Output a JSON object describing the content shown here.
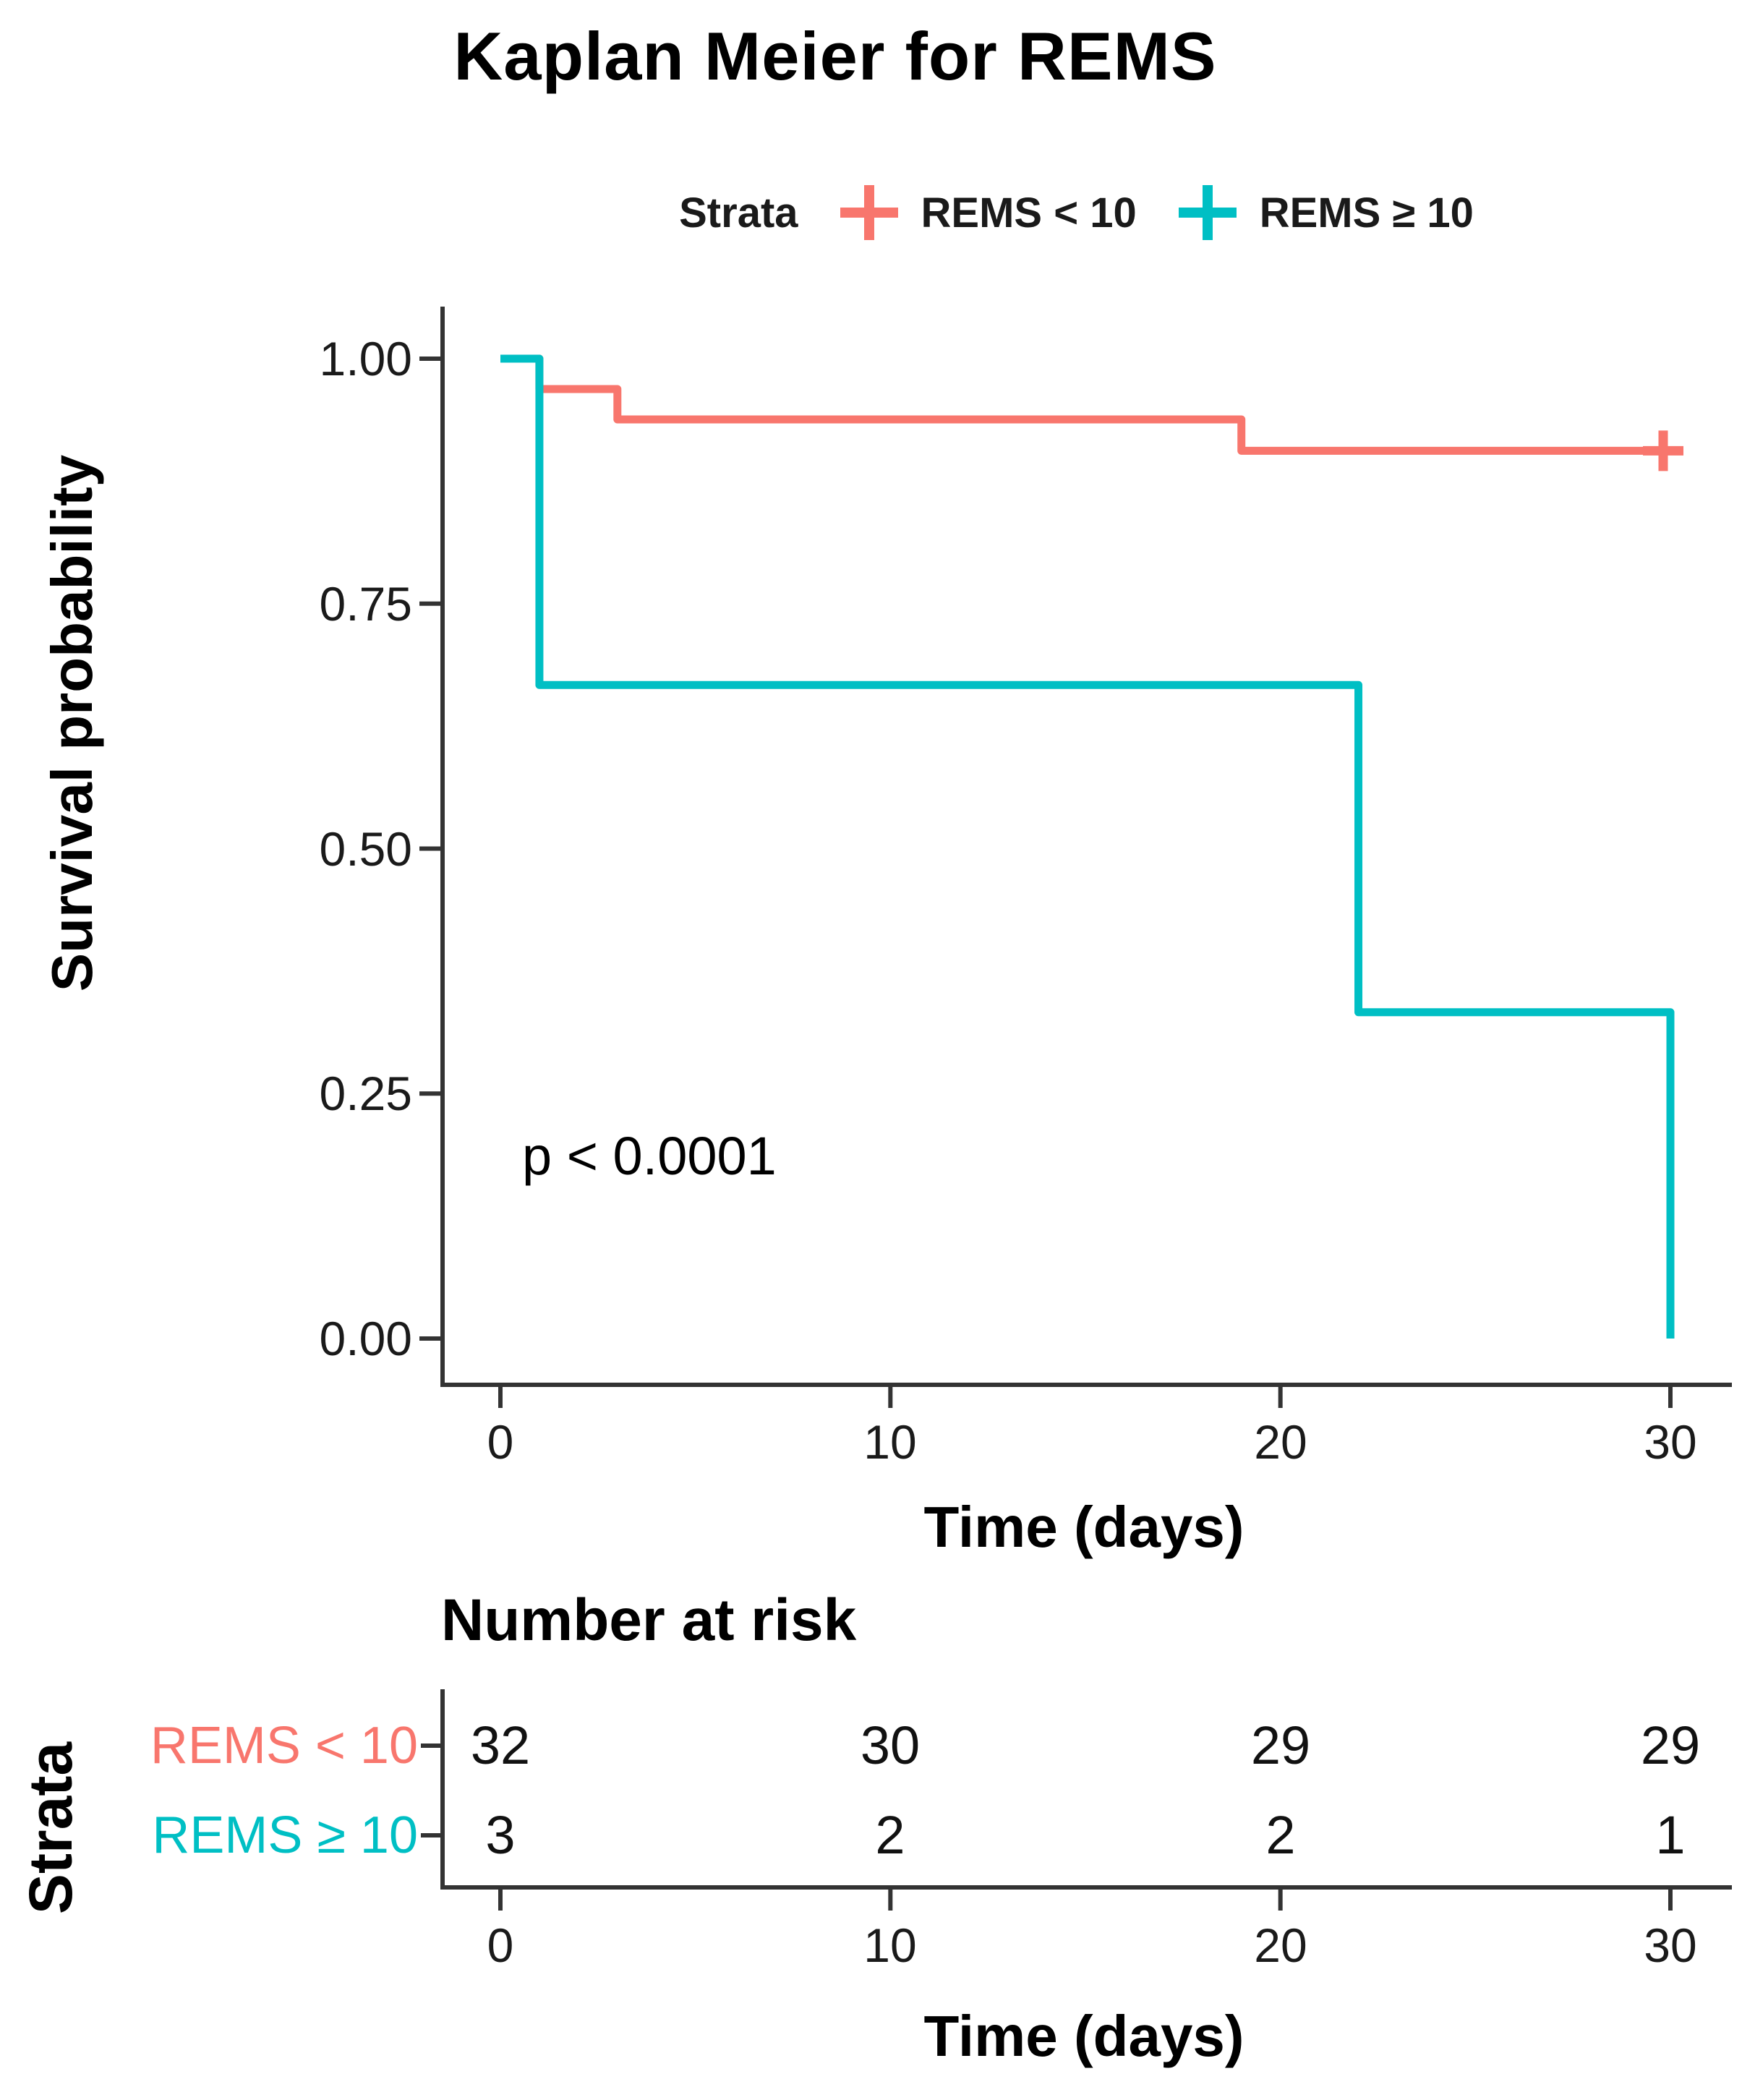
{
  "title": "Kaplan Meier for REMS",
  "legend": {
    "title": "Strata",
    "items": [
      {
        "label": "REMS < 10",
        "color": "#F8766D"
      },
      {
        "label": "REMS ≥ 10",
        "color": "#00BFC4"
      }
    ]
  },
  "chart_data": {
    "type": "line",
    "subtype": "kaplan_meier_step",
    "title": "Kaplan Meier for REMS",
    "xlabel": "Time (days)",
    "ylabel": "Survival probability",
    "xlim": [
      0,
      31
    ],
    "ylim": [
      0,
      1
    ],
    "grid": false,
    "legend_position": "top",
    "p_value_annotation": "p < 0.0001",
    "x_ticks": [
      0,
      10,
      20,
      30
    ],
    "x_tick_labels": [
      "0",
      "10",
      "20",
      "30"
    ],
    "y_ticks": [
      1.0,
      0.75,
      0.5,
      0.25,
      0.0
    ],
    "y_tick_labels": [
      "1.00",
      "0.75",
      "0.50",
      "0.25",
      "0.00"
    ],
    "series": [
      {
        "name": "REMS < 10",
        "color": "#F8766D",
        "step_points": [
          [
            0,
            1.0
          ],
          [
            1,
            0.969
          ],
          [
            3,
            0.938
          ],
          [
            19,
            0.906
          ],
          [
            30,
            0.906
          ]
        ],
        "censor_marks": [
          [
            30,
            0.906
          ]
        ]
      },
      {
        "name": "REMS ≥ 10",
        "color": "#00BFC4",
        "step_points": [
          [
            0,
            1.0
          ],
          [
            1,
            0.667
          ],
          [
            22,
            0.333
          ],
          [
            30,
            0.0
          ]
        ],
        "censor_marks": []
      }
    ]
  },
  "risk_table": {
    "title": "Number at risk",
    "axis_label": "Strata",
    "xlabel": "Time (days)",
    "time_ticks": [
      0,
      10,
      20,
      30
    ],
    "time_tick_labels": [
      "0",
      "10",
      "20",
      "30"
    ],
    "rows": [
      {
        "label": "REMS < 10",
        "color": "#F8766D",
        "values": [
          32,
          30,
          29,
          29
        ]
      },
      {
        "label": "REMS ≥ 10",
        "color": "#00BFC4",
        "values": [
          3,
          2,
          2,
          1
        ]
      }
    ]
  }
}
